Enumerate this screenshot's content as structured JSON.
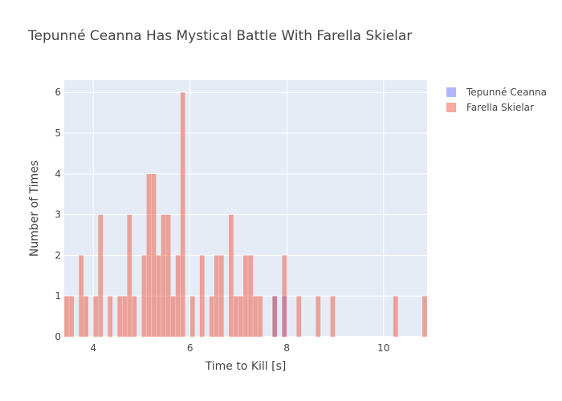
{
  "chart_data": {
    "type": "histogram",
    "title": "Tepunné Ceanna Has Mystical Battle With Farella Skielar",
    "xlabel": "Time to Kill [s]",
    "ylabel": "Number of Times",
    "xlim": [
      3.4,
      10.9
    ],
    "ylim": [
      0,
      6.3
    ],
    "x_ticks": [
      4,
      6,
      8,
      10
    ],
    "y_ticks": [
      0,
      1,
      2,
      3,
      4,
      5,
      6
    ],
    "bin_width": 0.1,
    "grid": true,
    "legend_position": "top-right",
    "series": [
      {
        "name": "Tepunné Ceanna",
        "color": "#636efa",
        "opacity": 0.5,
        "bins": [
          {
            "x0": 7.7,
            "x1": 7.8,
            "count": 1
          },
          {
            "x0": 7.9,
            "x1": 8.0,
            "count": 1
          }
        ]
      },
      {
        "name": "Farella Skielar",
        "color": "#ef553b",
        "opacity": 0.5,
        "bins": [
          {
            "x0": 3.4,
            "x1": 3.5,
            "count": 1
          },
          {
            "x0": 3.5,
            "x1": 3.6,
            "count": 1
          },
          {
            "x0": 3.7,
            "x1": 3.8,
            "count": 2
          },
          {
            "x0": 3.8,
            "x1": 3.9,
            "count": 1
          },
          {
            "x0": 4.0,
            "x1": 4.1,
            "count": 1
          },
          {
            "x0": 4.1,
            "x1": 4.2,
            "count": 3
          },
          {
            "x0": 4.3,
            "x1": 4.4,
            "count": 1
          },
          {
            "x0": 4.5,
            "x1": 4.6,
            "count": 1
          },
          {
            "x0": 4.6,
            "x1": 4.7,
            "count": 1
          },
          {
            "x0": 4.7,
            "x1": 4.8,
            "count": 3
          },
          {
            "x0": 4.8,
            "x1": 4.9,
            "count": 1
          },
          {
            "x0": 5.0,
            "x1": 5.1,
            "count": 2
          },
          {
            "x0": 5.1,
            "x1": 5.2,
            "count": 4
          },
          {
            "x0": 5.2,
            "x1": 5.3,
            "count": 4
          },
          {
            "x0": 5.3,
            "x1": 5.4,
            "count": 2
          },
          {
            "x0": 5.4,
            "x1": 5.5,
            "count": 3
          },
          {
            "x0": 5.5,
            "x1": 5.6,
            "count": 3
          },
          {
            "x0": 5.6,
            "x1": 5.7,
            "count": 1
          },
          {
            "x0": 5.7,
            "x1": 5.8,
            "count": 2
          },
          {
            "x0": 5.8,
            "x1": 5.9,
            "count": 6
          },
          {
            "x0": 6.0,
            "x1": 6.1,
            "count": 1
          },
          {
            "x0": 6.2,
            "x1": 6.3,
            "count": 2
          },
          {
            "x0": 6.4,
            "x1": 6.5,
            "count": 1
          },
          {
            "x0": 6.5,
            "x1": 6.6,
            "count": 2
          },
          {
            "x0": 6.6,
            "x1": 6.7,
            "count": 2
          },
          {
            "x0": 6.8,
            "x1": 6.9,
            "count": 3
          },
          {
            "x0": 6.9,
            "x1": 7.0,
            "count": 1
          },
          {
            "x0": 7.0,
            "x1": 7.1,
            "count": 1
          },
          {
            "x0": 7.1,
            "x1": 7.2,
            "count": 2
          },
          {
            "x0": 7.2,
            "x1": 7.3,
            "count": 2
          },
          {
            "x0": 7.3,
            "x1": 7.4,
            "count": 1
          },
          {
            "x0": 7.4,
            "x1": 7.5,
            "count": 1
          },
          {
            "x0": 7.7,
            "x1": 7.8,
            "count": 1
          },
          {
            "x0": 7.9,
            "x1": 8.0,
            "count": 2
          },
          {
            "x0": 8.2,
            "x1": 8.3,
            "count": 1
          },
          {
            "x0": 8.6,
            "x1": 8.7,
            "count": 1
          },
          {
            "x0": 8.9,
            "x1": 9.0,
            "count": 1
          },
          {
            "x0": 10.2,
            "x1": 10.3,
            "count": 1
          },
          {
            "x0": 10.8,
            "x1": 10.9,
            "count": 1
          }
        ]
      }
    ]
  }
}
